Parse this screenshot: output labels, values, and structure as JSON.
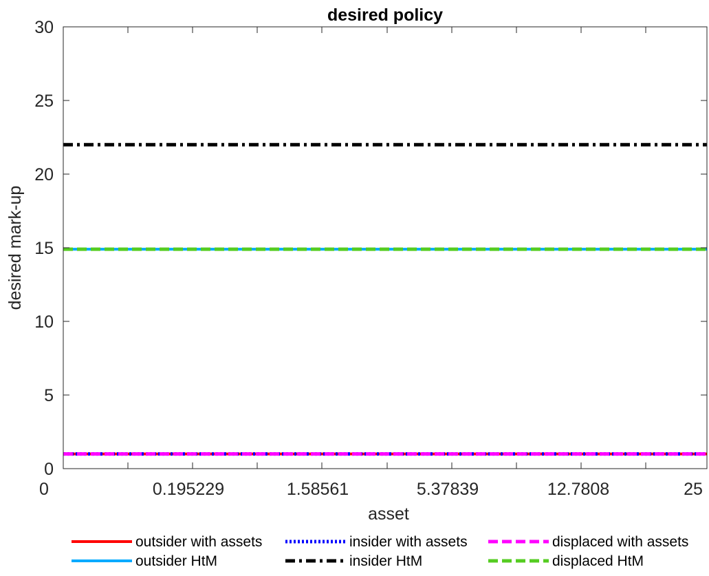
{
  "chart_data": {
    "type": "line",
    "title": "desired policy",
    "xlabel": "asset",
    "ylabel": "desired mark-up",
    "x_tick_labels": [
      "0",
      "0.195229",
      "1.58561",
      "5.37839",
      "12.7808",
      "25"
    ],
    "y_ticks": [
      0,
      5,
      10,
      15,
      20,
      25,
      30
    ],
    "ylim": [
      0,
      30
    ],
    "grid": false,
    "legend_placement": "bottom-outside",
    "series": [
      {
        "name": "outsider with assets",
        "value": 1,
        "color": "#ff0000",
        "style": "solid"
      },
      {
        "name": "insider with assets",
        "value": 1,
        "color": "#0000ff",
        "style": "dotted"
      },
      {
        "name": "displaced with assets",
        "value": 1,
        "color": "#ff00ff",
        "style": "dashed"
      },
      {
        "name": "outsider HtM",
        "value": 14.9,
        "color": "#00aaff",
        "style": "solid"
      },
      {
        "name": "insider HtM",
        "value": 22,
        "color": "#000000",
        "style": "dashdot"
      },
      {
        "name": "displaced HtM",
        "value": 14.9,
        "color": "#55cc22",
        "style": "dashed"
      }
    ]
  }
}
